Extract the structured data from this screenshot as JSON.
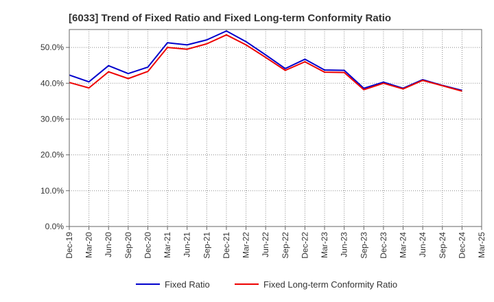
{
  "chart_data": {
    "type": "line",
    "title": "[6033]  Trend of Fixed Ratio and Fixed Long-term Conformity Ratio",
    "xlabel": "",
    "ylabel": "",
    "ylim": [
      0,
      55
    ],
    "yticks": [
      0,
      10,
      20,
      30,
      40,
      50
    ],
    "ytick_labels": [
      "0.0%",
      "10.0%",
      "20.0%",
      "30.0%",
      "40.0%",
      "50.0%"
    ],
    "categories": [
      "Dec-19",
      "Mar-20",
      "Jun-20",
      "Sep-20",
      "Dec-20",
      "Mar-21",
      "Jun-21",
      "Sep-21",
      "Dec-21",
      "Mar-22",
      "Jun-22",
      "Sep-22",
      "Dec-22",
      "Mar-23",
      "Jun-23",
      "Sep-23",
      "Dec-23",
      "Mar-24",
      "Jun-24",
      "Sep-24",
      "Dec-24",
      "Mar-25"
    ],
    "grid": true,
    "legend_position": "bottom",
    "series": [
      {
        "name": "Fixed Ratio",
        "color": "#0000cc",
        "values": [
          42.3,
          40.4,
          44.9,
          42.7,
          44.5,
          51.3,
          50.7,
          52.1,
          54.6,
          51.6,
          47.9,
          44.1,
          46.7,
          43.7,
          43.6,
          38.6,
          40.3,
          38.6,
          41.0,
          39.4,
          38.0,
          null
        ]
      },
      {
        "name": "Fixed Long-term Conformity Ratio",
        "color": "#ee0000",
        "values": [
          40.2,
          38.7,
          43.2,
          41.3,
          43.3,
          50.0,
          49.5,
          51.0,
          53.5,
          50.7,
          47.2,
          43.6,
          46.0,
          43.1,
          43.0,
          38.2,
          40.0,
          38.4,
          40.8,
          39.3,
          37.8,
          null
        ]
      }
    ]
  }
}
